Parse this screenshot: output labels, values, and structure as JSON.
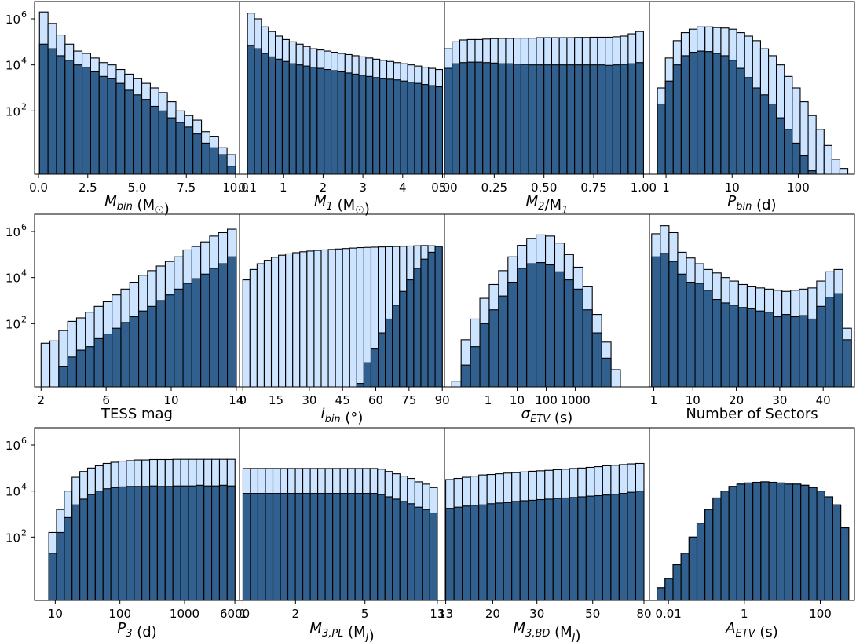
{
  "colors": {
    "light": "#cce4ff",
    "dark": "#31608f",
    "edge": "#000000"
  },
  "chart_data": [
    {
      "type": "bar",
      "id": "mbin",
      "xlabel": "M_bin (M_☉)",
      "xscale": "linear",
      "xlim": [
        -0.2,
        10.2
      ],
      "bins": [
        0.05,
        10.0
      ],
      "ylim_log": [
        -0.75,
        6.75
      ],
      "xticks": [
        {
          "v": 0,
          "label": "0.0"
        },
        {
          "v": 2.5,
          "label": "2.5"
        },
        {
          "v": 5,
          "label": "5.0"
        },
        {
          "v": 7.5,
          "label": "7.5"
        },
        {
          "v": 10,
          "label": "10.0"
        }
      ],
      "light_log": [
        6.3,
        5.8,
        5.3,
        4.9,
        4.6,
        4.5,
        4.3,
        4.1,
        4.0,
        3.8,
        3.6,
        3.4,
        3.2,
        3.0,
        2.8,
        2.4,
        2.0,
        1.8,
        1.6,
        1.1,
        0.9,
        0.4,
        0.1
      ],
      "dark_log": [
        4.9,
        4.7,
        4.4,
        4.2,
        4.0,
        3.9,
        3.7,
        3.5,
        3.4,
        3.2,
        2.9,
        2.7,
        2.5,
        2.2,
        2.0,
        1.7,
        1.5,
        1.3,
        1.0,
        0.6,
        0.4,
        0.1,
        -0.4
      ]
    },
    {
      "type": "bar",
      "id": "m1",
      "xlabel": "M_1 (M_☉)",
      "xscale": "linear",
      "xlim": [
        -0.1,
        5.05
      ],
      "bins": [
        0.1,
        5.0
      ],
      "ylim_log": [
        -0.75,
        6.75
      ],
      "xticks": [
        {
          "v": 0.1,
          "label": "0.1"
        },
        {
          "v": 1,
          "label": "1"
        },
        {
          "v": 2,
          "label": "2"
        },
        {
          "v": 3,
          "label": "3"
        },
        {
          "v": 4,
          "label": "4"
        },
        {
          "v": 5,
          "label": "5"
        }
      ],
      "light_log": [
        6.25,
        6.0,
        5.65,
        5.45,
        5.25,
        5.1,
        5.0,
        4.9,
        4.8,
        4.7,
        4.65,
        4.6,
        4.55,
        4.5,
        4.45,
        4.4,
        4.35,
        4.3,
        4.25,
        4.2,
        4.15,
        4.1,
        4.05,
        4.0,
        3.95,
        3.9,
        3.85,
        3.8
      ],
      "dark_log": [
        4.85,
        4.7,
        4.5,
        4.35,
        4.25,
        4.15,
        4.05,
        4.0,
        3.95,
        3.9,
        3.85,
        3.8,
        3.75,
        3.7,
        3.65,
        3.6,
        3.55,
        3.5,
        3.45,
        3.4,
        3.38,
        3.35,
        3.3,
        3.25,
        3.2,
        3.15,
        3.1,
        3.05
      ]
    },
    {
      "type": "bar",
      "id": "q",
      "xlabel": "M_2/M_1",
      "xscale": "linear",
      "xlim": [
        0.0,
        1.03
      ],
      "bins": [
        0.0,
        1.0
      ],
      "ylim_log": [
        -0.75,
        6.75
      ],
      "xticks": [
        {
          "v": 0,
          "label": "0.00"
        },
        {
          "v": 0.25,
          "label": "0.25"
        },
        {
          "v": 0.5,
          "label": "0.50"
        },
        {
          "v": 0.75,
          "label": "0.75"
        },
        {
          "v": 1,
          "label": "1.00"
        }
      ],
      "light_log": [
        4.7,
        5.0,
        5.08,
        5.1,
        5.1,
        5.12,
        5.14,
        5.15,
        5.15,
        5.16,
        5.16,
        5.16,
        5.18,
        5.18,
        5.18,
        5.18,
        5.18,
        5.19,
        5.19,
        5.2,
        5.2,
        5.2,
        5.22,
        5.25,
        5.35,
        5.45
      ],
      "dark_log": [
        3.85,
        4.05,
        4.1,
        4.12,
        4.12,
        4.1,
        4.08,
        4.05,
        4.05,
        4.03,
        4.02,
        4.0,
        4.0,
        4.0,
        4.0,
        4.0,
        4.0,
        4.0,
        4.0,
        4.0,
        4.0,
        3.98,
        4.0,
        4.02,
        4.05,
        4.1
      ]
    },
    {
      "type": "bar",
      "id": "pbin",
      "xlabel": "P_bin (d)",
      "xscale": "log",
      "xlim": [
        -0.25,
        2.85
      ],
      "bins": [
        -0.13,
        2.75
      ],
      "ylim_log": [
        -0.75,
        6.75
      ],
      "xticks": [
        {
          "v": 0,
          "label": "1"
        },
        {
          "v": 1,
          "label": "10"
        },
        {
          "v": 2,
          "label": "100"
        }
      ],
      "light_log": [
        3.0,
        4.3,
        5.05,
        5.4,
        5.55,
        5.65,
        5.65,
        5.62,
        5.6,
        5.55,
        5.4,
        5.25,
        5.05,
        4.7,
        4.4,
        4.0,
        3.5,
        3.0,
        2.4,
        1.8,
        1.2,
        0.5,
        -0.1,
        -0.5
      ],
      "dark_log": [
        2.3,
        3.3,
        4.0,
        4.4,
        4.55,
        4.6,
        4.58,
        4.5,
        4.4,
        4.2,
        3.85,
        3.45,
        3.0,
        2.7,
        2.3,
        1.7,
        1.2,
        0.6,
        0.05,
        -0.6,
        -1.0,
        -1.0,
        -1.0,
        -1.0
      ]
    },
    {
      "type": "bar",
      "id": "tess",
      "xlabel": "TESS mag",
      "xscale": "linear",
      "xlim": [
        1.6,
        14.2
      ],
      "bins": [
        2.0,
        14.0
      ],
      "ylim_log": [
        -0.75,
        6.75
      ],
      "xticks": [
        {
          "v": 2,
          "label": "2"
        },
        {
          "v": 6,
          "label": "6"
        },
        {
          "v": 10,
          "label": "10"
        },
        {
          "v": 14,
          "label": "14"
        }
      ],
      "light_log": [
        1.15,
        1.25,
        1.7,
        2.1,
        2.25,
        2.5,
        2.75,
        2.95,
        3.25,
        3.5,
        3.8,
        4.1,
        4.3,
        4.5,
        4.7,
        4.9,
        5.2,
        5.35,
        5.55,
        5.8,
        5.95,
        6.1
      ],
      "dark_log": [
        -1.0,
        -1.0,
        0.15,
        0.55,
        0.85,
        1.0,
        1.35,
        1.55,
        1.8,
        2.05,
        2.3,
        2.55,
        2.75,
        3.0,
        3.25,
        3.5,
        3.75,
        3.95,
        4.15,
        4.4,
        4.6,
        4.9
      ]
    },
    {
      "type": "bar",
      "id": "ibin",
      "xlabel": "i_bin (°)",
      "xscale": "linear",
      "xlim": [
        -1.5,
        91
      ],
      "bins": [
        0.0,
        90.0
      ],
      "ylim_log": [
        -0.75,
        6.75
      ],
      "xticks": [
        {
          "v": 0,
          "label": "0"
        },
        {
          "v": 15,
          "label": "15"
        },
        {
          "v": 30,
          "label": "30"
        },
        {
          "v": 45,
          "label": "45"
        },
        {
          "v": 60,
          "label": "60"
        },
        {
          "v": 75,
          "label": "75"
        },
        {
          "v": 90,
          "label": "90"
        }
      ],
      "light_log": [
        3.9,
        4.35,
        4.6,
        4.75,
        4.88,
        4.97,
        5.03,
        5.08,
        5.12,
        5.15,
        5.18,
        5.2,
        5.22,
        5.24,
        5.26,
        5.28,
        5.3,
        5.31,
        5.32,
        5.33,
        5.34,
        5.35,
        5.36,
        5.37,
        5.38,
        5.39,
        5.38,
        5.3
      ],
      "dark_log": [
        -1.0,
        -1.0,
        -1.0,
        -1.0,
        -1.0,
        -1.0,
        -1.0,
        -1.0,
        -1.0,
        -1.0,
        -1.0,
        -1.0,
        -1.0,
        -1.0,
        -1.0,
        -1.0,
        -0.6,
        0.3,
        0.9,
        1.6,
        2.2,
        2.8,
        3.4,
        3.9,
        4.4,
        4.8,
        5.1,
        5.35
      ]
    },
    {
      "type": "bar",
      "id": "setv",
      "xlabel": "σ_ETV (s)",
      "xscale": "log",
      "xlim": [
        -1.5,
        5.55
      ],
      "bins": [
        -1.25,
        4.55
      ],
      "ylim_log": [
        -0.75,
        6.75
      ],
      "xticks": [
        {
          "v": 0,
          "label": "1"
        },
        {
          "v": 1,
          "label": "10"
        },
        {
          "v": 2,
          "label": "100"
        },
        {
          "v": 3,
          "label": "1000"
        }
      ],
      "light_log": [
        -0.5,
        1.3,
        2.2,
        3.1,
        3.7,
        4.3,
        4.9,
        5.4,
        5.7,
        5.85,
        5.8,
        5.5,
        5.0,
        4.45,
        3.6,
        2.4,
        1.2,
        0.0
      ],
      "dark_log": [
        -1.0,
        0.2,
        1.0,
        2.0,
        2.6,
        3.2,
        3.8,
        4.4,
        4.6,
        4.65,
        4.55,
        4.25,
        3.9,
        3.5,
        2.6,
        1.6,
        0.5,
        -0.8
      ]
    },
    {
      "type": "bar",
      "id": "sectors",
      "xlabel": "Number of Sectors",
      "xscale": "linear",
      "xlim": [
        0.0,
        47.2
      ],
      "bins": [
        0.5,
        46.5
      ],
      "ylim_log": [
        -0.75,
        6.75
      ],
      "xticks": [
        {
          "v": 1,
          "label": "1"
        },
        {
          "v": 10,
          "label": "10"
        },
        {
          "v": 20,
          "label": "20"
        },
        {
          "v": 30,
          "label": "30"
        },
        {
          "v": 40,
          "label": "40"
        }
      ],
      "light_log": [
        5.9,
        6.25,
        5.95,
        5.1,
        4.85,
        4.6,
        4.35,
        4.2,
        4.0,
        3.85,
        3.7,
        3.6,
        3.55,
        3.5,
        3.45,
        3.4,
        3.45,
        3.5,
        3.55,
        3.85,
        4.25,
        4.35,
        1.8
      ],
      "dark_log": [
        4.9,
        5.05,
        4.7,
        4.15,
        3.8,
        3.75,
        3.45,
        3.05,
        2.9,
        2.8,
        2.7,
        2.65,
        2.55,
        2.5,
        2.3,
        2.4,
        2.3,
        2.35,
        2.2,
        2.75,
        3.15,
        3.3,
        1.3
      ]
    },
    {
      "type": "bar",
      "id": "p3",
      "xlabel": "P_3 (d)",
      "xscale": "log",
      "xlim": [
        0.68,
        3.85
      ],
      "bins": [
        0.9,
        3.78
      ],
      "ylim_log": [
        -0.75,
        6.75
      ],
      "xticks": [
        {
          "v": 1,
          "label": "10"
        },
        {
          "v": 2,
          "label": "100"
        },
        {
          "v": 3,
          "label": "1000"
        },
        {
          "v": 3.778,
          "label": "6000"
        }
      ],
      "light_log": [
        2.2,
        3.2,
        4.0,
        4.6,
        4.85,
        5.0,
        5.1,
        5.2,
        5.25,
        5.3,
        5.32,
        5.35,
        5.35,
        5.37,
        5.37,
        5.37,
        5.38,
        5.38,
        5.38,
        5.38,
        5.38,
        5.38,
        5.38,
        5.38
      ],
      "dark_log": [
        1.3,
        2.2,
        2.85,
        3.4,
        3.65,
        3.85,
        4.0,
        4.1,
        4.15,
        4.18,
        4.2,
        4.2,
        4.2,
        4.22,
        4.2,
        4.2,
        4.22,
        4.22,
        4.22,
        4.25,
        4.22,
        4.22,
        4.25,
        4.22
      ]
    },
    {
      "type": "bar",
      "id": "m3pl",
      "xlabel": "M_3,PL (M_J)",
      "xscale": "log",
      "xlim": [
        -0.02,
        1.155
      ],
      "bins": [
        0.0,
        1.114
      ],
      "ylim_log": [
        -0.75,
        6.75
      ],
      "xticks": [
        {
          "v": 0,
          "label": "1"
        },
        {
          "v": 0.301,
          "label": "2"
        },
        {
          "v": 0.699,
          "label": "5"
        },
        {
          "v": 1.114,
          "label": "13"
        }
      ],
      "light_log": [
        4.98,
        4.98,
        4.98,
        4.98,
        4.98,
        4.98,
        4.98,
        4.98,
        4.98,
        4.98,
        4.98,
        4.98,
        4.98,
        4.98,
        4.98,
        4.98,
        4.98,
        4.98,
        4.95,
        4.85,
        4.75,
        4.65,
        4.55,
        4.4,
        4.3,
        4.15
      ],
      "dark_log": [
        3.9,
        3.9,
        3.9,
        3.9,
        3.9,
        3.9,
        3.9,
        3.9,
        3.9,
        3.9,
        3.9,
        3.9,
        3.9,
        3.9,
        3.9,
        3.9,
        3.9,
        3.9,
        3.85,
        3.75,
        3.65,
        3.55,
        3.45,
        3.3,
        3.2,
        3.05
      ]
    },
    {
      "type": "bar",
      "id": "m3bd",
      "xlabel": "M_3,BD (M_J)",
      "xscale": "log",
      "xlim": [
        1.109,
        1.925
      ],
      "bins": [
        1.114,
        1.903
      ],
      "ylim_log": [
        -0.75,
        6.75
      ],
      "xticks": [
        {
          "v": 1.114,
          "label": "13"
        },
        {
          "v": 1.301,
          "label": "20"
        },
        {
          "v": 1.477,
          "label": "30"
        },
        {
          "v": 1.699,
          "label": "50"
        },
        {
          "v": 1.903,
          "label": "80"
        }
      ],
      "light_log": [
        4.5,
        4.55,
        4.6,
        4.65,
        4.7,
        4.72,
        4.75,
        4.78,
        4.8,
        4.83,
        4.86,
        4.88,
        4.9,
        4.93,
        4.95,
        4.98,
        5.0,
        5.03,
        5.06,
        5.1,
        5.12,
        5.15,
        5.18,
        5.2
      ],
      "dark_log": [
        3.25,
        3.3,
        3.35,
        3.38,
        3.4,
        3.45,
        3.48,
        3.5,
        3.55,
        3.58,
        3.6,
        3.63,
        3.65,
        3.68,
        3.7,
        3.72,
        3.75,
        3.78,
        3.8,
        3.83,
        3.86,
        3.9,
        3.95,
        4.0
      ]
    },
    {
      "type": "bar",
      "id": "aetv",
      "xlabel": "A_ETV (s)",
      "xscale": "log",
      "xlim": [
        -2.5,
        2.9
      ],
      "bins": [
        -2.3,
        2.75
      ],
      "ylim_log": [
        -0.75,
        6.75
      ],
      "xticks": [
        {
          "v": -2,
          "label": "0.01"
        },
        {
          "v": 0,
          "label": "1"
        },
        {
          "v": 2,
          "label": "100"
        }
      ],
      "light_log": [
        -0.2,
        0.2,
        0.8,
        1.3,
        2.0,
        2.6,
        3.2,
        3.7,
        4.0,
        4.2,
        4.3,
        4.35,
        4.38,
        4.4,
        4.38,
        4.35,
        4.3,
        4.3,
        4.25,
        4.15,
        4.0,
        3.75,
        3.4,
        2.4
      ],
      "dark_log": [
        -0.2,
        0.2,
        0.8,
        1.3,
        2.0,
        2.6,
        3.2,
        3.7,
        4.0,
        4.2,
        4.3,
        4.35,
        4.38,
        4.4,
        4.38,
        4.35,
        4.3,
        4.3,
        4.25,
        4.15,
        4.0,
        3.75,
        3.4,
        2.4
      ]
    }
  ],
  "yticks": [
    {
      "v": 2,
      "label": "10"
    },
    {
      "v": 4,
      "label": "10"
    },
    {
      "v": 6,
      "label": "10"
    }
  ],
  "ytick_exponents": [
    "2",
    "4",
    "6"
  ]
}
